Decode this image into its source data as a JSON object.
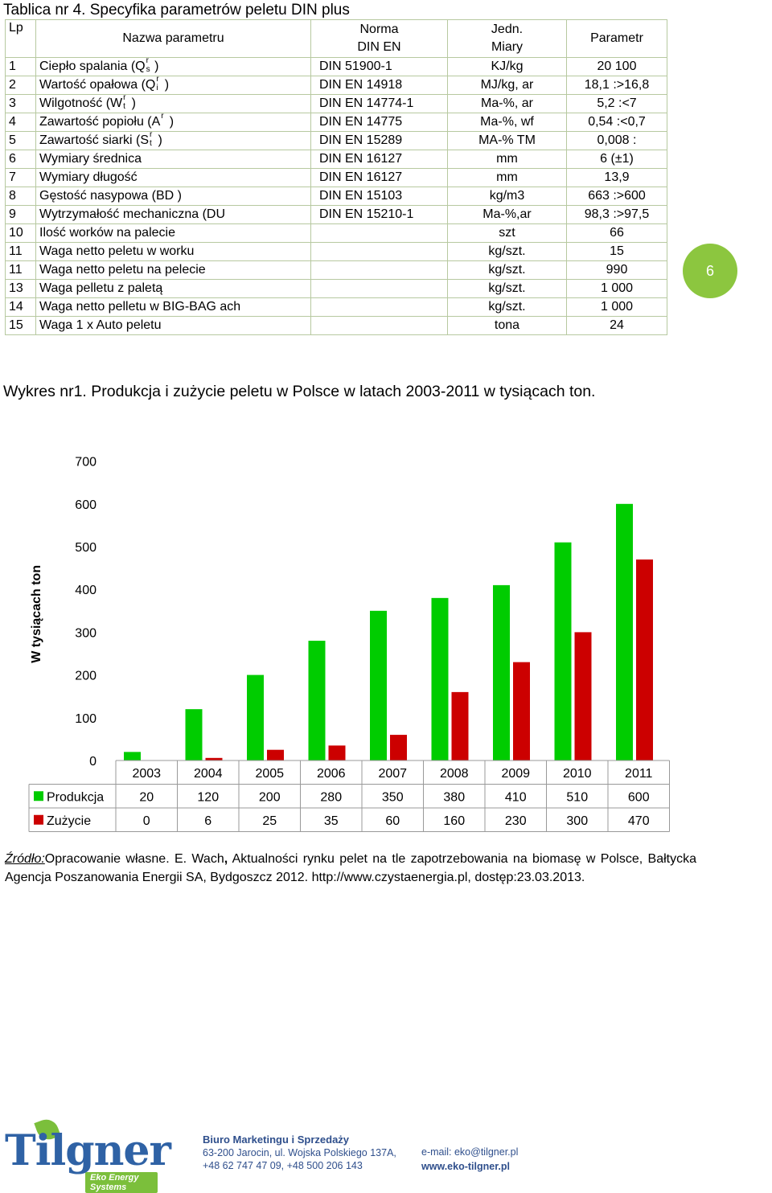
{
  "table": {
    "title": "Tablica nr 4. Specyfika parametrów peletu DIN plus",
    "headers": {
      "lp": "Lp",
      "name": "Nazwa parametru",
      "norm_line1": "Norma",
      "norm_line2": "DIN EN",
      "unit_line1": "Jedn.",
      "unit_line2": "Miary",
      "value": "Parametr"
    },
    "rows": [
      {
        "lp": "1",
        "name": "Ciepło spalania (Q",
        "sub": "s",
        "sup": "r",
        "tail": " )",
        "norm": "DIN 51900-1",
        "unit": "KJ/kg",
        "value": "20 100"
      },
      {
        "lp": "2",
        "name": "Wartość opałowa (Q",
        "sub": "i",
        "sup": "r",
        "tail": " )",
        "norm": "DIN EN 14918",
        "unit": "MJ/kg, ar",
        "value": "18,1 :>16,8"
      },
      {
        "lp": "3",
        "name": "Wilgotność (W",
        "sub": "t",
        "sup": "r",
        "tail": " )",
        "norm": "DIN EN 14774-1",
        "unit": "Ma-%, ar",
        "value": "5,2 :<7"
      },
      {
        "lp": "4",
        "name": "Zawartość popiołu (A",
        "sub": "",
        "sup": "r",
        "tail": " )",
        "norm": "DIN EN 14775",
        "unit": "Ma-%, wf",
        "value": "0,54 :<0,7"
      },
      {
        "lp": "5",
        "name": "Zawartość siarki (S",
        "sub": "t",
        "sup": "r",
        "tail": " )",
        "norm": "DIN EN 15289",
        "unit": "MA-% TM",
        "value": "0,008 :"
      },
      {
        "lp": "6",
        "name": "Wymiary średnica",
        "sub": "",
        "sup": "",
        "tail": "",
        "norm": "DIN EN 16127",
        "unit": "mm",
        "value": "6 (±1)"
      },
      {
        "lp": "7",
        "name": "Wymiary długość",
        "sub": "",
        "sup": "",
        "tail": "",
        "norm": "DIN EN 16127",
        "unit": "mm",
        "value": "13,9"
      },
      {
        "lp": "8",
        "name": "Gęstość nasypowa (BD )",
        "sub": "",
        "sup": "",
        "tail": "",
        "norm": "DIN EN 15103",
        "unit": "kg/m3",
        "value": "663 :>600"
      },
      {
        "lp": "9",
        "name": "Wytrzymałość mechaniczna (DU",
        "sub": "",
        "sup": "",
        "tail": "",
        "norm": "DIN EN 15210-1",
        "unit": "Ma-%,ar",
        "value": "98,3 :>97,5"
      },
      {
        "lp": "10",
        "name": "Ilość worków na palecie",
        "sub": "",
        "sup": "",
        "tail": "",
        "norm": "",
        "unit": "szt",
        "value": "66"
      },
      {
        "lp": "11",
        "name": "Waga netto peletu w worku",
        "sub": "",
        "sup": "",
        "tail": "",
        "norm": "",
        "unit": "kg/szt.",
        "value": "15"
      },
      {
        "lp": "11",
        "name": "Waga netto peletu na pelecie",
        "sub": "",
        "sup": "",
        "tail": "",
        "norm": "",
        "unit": "kg/szt.",
        "value": "990"
      },
      {
        "lp": "13",
        "name": "Waga pelletu z paletą",
        "sub": "",
        "sup": "",
        "tail": "",
        "norm": "",
        "unit": "kg/szt.",
        "value": "1 000"
      },
      {
        "lp": "14",
        "name": "Waga netto pelletu w BIG-BAG ach",
        "sub": "",
        "sup": "",
        "tail": "",
        "norm": "",
        "unit": "kg/szt.",
        "value": "1 000"
      },
      {
        "lp": "15",
        "name": "Waga 1 x Auto peletu",
        "sub": "",
        "sup": "",
        "tail": "",
        "norm": "",
        "unit": "tona",
        "value": "24"
      }
    ]
  },
  "page_number": "6",
  "chart_title": "Wykres nr1. Produkcja i zużycie peletu w Polsce w latach 2003-2011 w tysiącach ton.",
  "chart_data": {
    "type": "bar",
    "title": "",
    "xlabel": "",
    "ylabel": "W tysiącach ton",
    "ylim": [
      0,
      700
    ],
    "yticks": [
      0,
      100,
      200,
      300,
      400,
      500,
      600,
      700
    ],
    "grid": false,
    "legend": "data-table-left",
    "categories": [
      "2003",
      "2004",
      "2005",
      "2006",
      "2007",
      "2008",
      "2009",
      "2010",
      "2011"
    ],
    "series": [
      {
        "name": "Produkcja",
        "color": "#00cc00",
        "values": [
          20,
          120,
          200,
          280,
          350,
          380,
          410,
          510,
          600
        ]
      },
      {
        "name": "Zużycie",
        "color": "#cc0000",
        "values": [
          0,
          6,
          25,
          35,
          60,
          160,
          230,
          300,
          470
        ]
      }
    ]
  },
  "source": {
    "label": "Źródło:",
    "text_a": "Opracowanie własne. E. Wach",
    "text_b": " Aktualności rynku pelet na tle zapotrzebowania na biomasę w Polsce, Bałtycka Agencja Poszanowania Energii SA, Bydgoszcz 2012. http://www.czystaenergia.pl, dostęp:23.03.2013.",
    "comma": ","
  },
  "footer": {
    "logo_name": "Tilgner",
    "logo_sub": "Eko Energy Systems",
    "office_head": "Biuro Marketingu i Sprzedaży",
    "address": "63-200 Jarocin, ul. Wojska Polskiego 137A,",
    "phones": "+48 62 747 47 09, +48 500 206 143",
    "email": "e-mail: eko@tilgner.pl",
    "web": "www.eko-tilgner.pl",
    "colors": {
      "blue": "#2f62a5",
      "green": "#7bbf3b"
    }
  }
}
